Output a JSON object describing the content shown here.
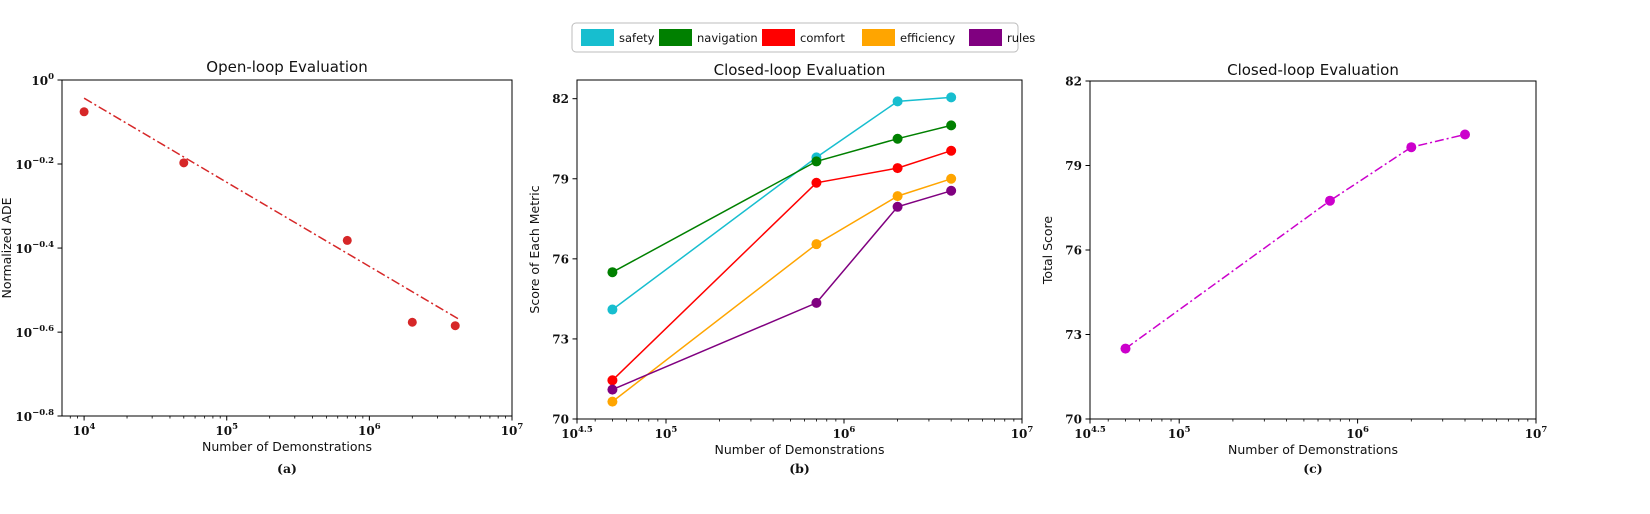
{
  "legend": {
    "placement": "top-center",
    "entries": [
      {
        "name": "safety",
        "color": "#17BECF"
      },
      {
        "name": "navigation",
        "color": "#008000"
      },
      {
        "name": "comfort",
        "color": "#FF0000"
      },
      {
        "name": "efficiency",
        "color": "#FFA500"
      },
      {
        "name": "rules",
        "color": "#800080"
      }
    ]
  },
  "chart_data": [
    {
      "type": "scatter",
      "title": "Open-loop Evaluation",
      "xlabel": "Number of Demonstrations",
      "ylabel": "Normalized ADE",
      "caption": "(a)",
      "xscale": "log",
      "yscale": "log",
      "xlim": [
        7000,
        10000000
      ],
      "ylim": [
        0.1585,
        1.0
      ],
      "xticks": [
        {
          "base": "10",
          "exp": "4",
          "value": 10000
        },
        {
          "base": "10",
          "exp": "5",
          "value": 100000
        },
        {
          "base": "10",
          "exp": "6",
          "value": 1000000
        },
        {
          "base": "10",
          "exp": "7",
          "value": 10000000
        }
      ],
      "yticks": [
        {
          "base": "10",
          "exp": "0",
          "value": 1.0
        },
        {
          "base": "10",
          "exp": "−0.2",
          "value": 0.631
        },
        {
          "base": "10",
          "exp": "−0.4",
          "value": 0.398
        },
        {
          "base": "10",
          "exp": "−0.6",
          "value": 0.251
        },
        {
          "base": "10",
          "exp": "−0.8",
          "value": 0.1585
        }
      ],
      "color": "#D62728",
      "series": [
        {
          "kind": "points",
          "x": [
            10000,
            50000,
            700000,
            2000000,
            4000000
          ],
          "y": [
            0.84,
            0.635,
            0.415,
            0.265,
            0.26
          ]
        },
        {
          "kind": "fit",
          "style": "dashdot",
          "x": [
            10000,
            4200000
          ],
          "y": [
            0.905,
            0.27
          ]
        }
      ]
    },
    {
      "type": "line",
      "title": "Closed-loop Evaluation",
      "xlabel": "Number of Demonstrations",
      "ylabel": "Score of Each Metric",
      "caption": "(b)",
      "xscale": "log",
      "xlim": [
        31623,
        10000000
      ],
      "ylim": [
        70,
        82.7
      ],
      "xticks": [
        {
          "base": "10",
          "exp": "4.5",
          "value": 31623
        },
        {
          "base": "10",
          "exp": "5",
          "value": 100000
        },
        {
          "base": "10",
          "exp": "6",
          "value": 1000000
        },
        {
          "base": "10",
          "exp": "7",
          "value": 10000000
        }
      ],
      "yticks": [
        {
          "label": "70",
          "value": 70
        },
        {
          "label": "73",
          "value": 73
        },
        {
          "label": "76",
          "value": 76
        },
        {
          "label": "79",
          "value": 79
        },
        {
          "label": "82",
          "value": 82
        }
      ],
      "x": [
        50000,
        700000,
        2000000,
        4000000
      ],
      "series": [
        {
          "name": "safety",
          "color": "#17BECF",
          "values": [
            74.1,
            79.8,
            81.9,
            82.05
          ]
        },
        {
          "name": "navigation",
          "color": "#008000",
          "values": [
            75.5,
            79.65,
            80.5,
            81.0
          ]
        },
        {
          "name": "comfort",
          "color": "#FF0000",
          "values": [
            71.45,
            78.85,
            79.4,
            80.05
          ]
        },
        {
          "name": "efficiency",
          "color": "#FFA500",
          "values": [
            70.65,
            76.55,
            78.35,
            79.0
          ]
        },
        {
          "name": "rules",
          "color": "#800080",
          "values": [
            71.1,
            74.35,
            77.95,
            78.55
          ]
        }
      ]
    },
    {
      "type": "line",
      "title": "Closed-loop Evaluation",
      "xlabel": "Number of Demonstrations",
      "ylabel": "Total Score",
      "caption": "(c)",
      "xscale": "log",
      "xlim": [
        31623,
        10000000
      ],
      "ylim": [
        70,
        82
      ],
      "xticks": [
        {
          "base": "10",
          "exp": "4.5",
          "value": 31623
        },
        {
          "base": "10",
          "exp": "5",
          "value": 100000
        },
        {
          "base": "10",
          "exp": "6",
          "value": 1000000
        },
        {
          "base": "10",
          "exp": "7",
          "value": 10000000
        }
      ],
      "yticks": [
        {
          "label": "70",
          "value": 70
        },
        {
          "label": "73",
          "value": 73
        },
        {
          "label": "76",
          "value": 76
        },
        {
          "label": "79",
          "value": 79
        },
        {
          "label": "82",
          "value": 82
        }
      ],
      "color": "#CC00CC",
      "style": "dashdot",
      "x": [
        50000,
        700000,
        2000000,
        4000000
      ],
      "values": [
        72.5,
        77.75,
        79.65,
        80.1
      ]
    }
  ]
}
